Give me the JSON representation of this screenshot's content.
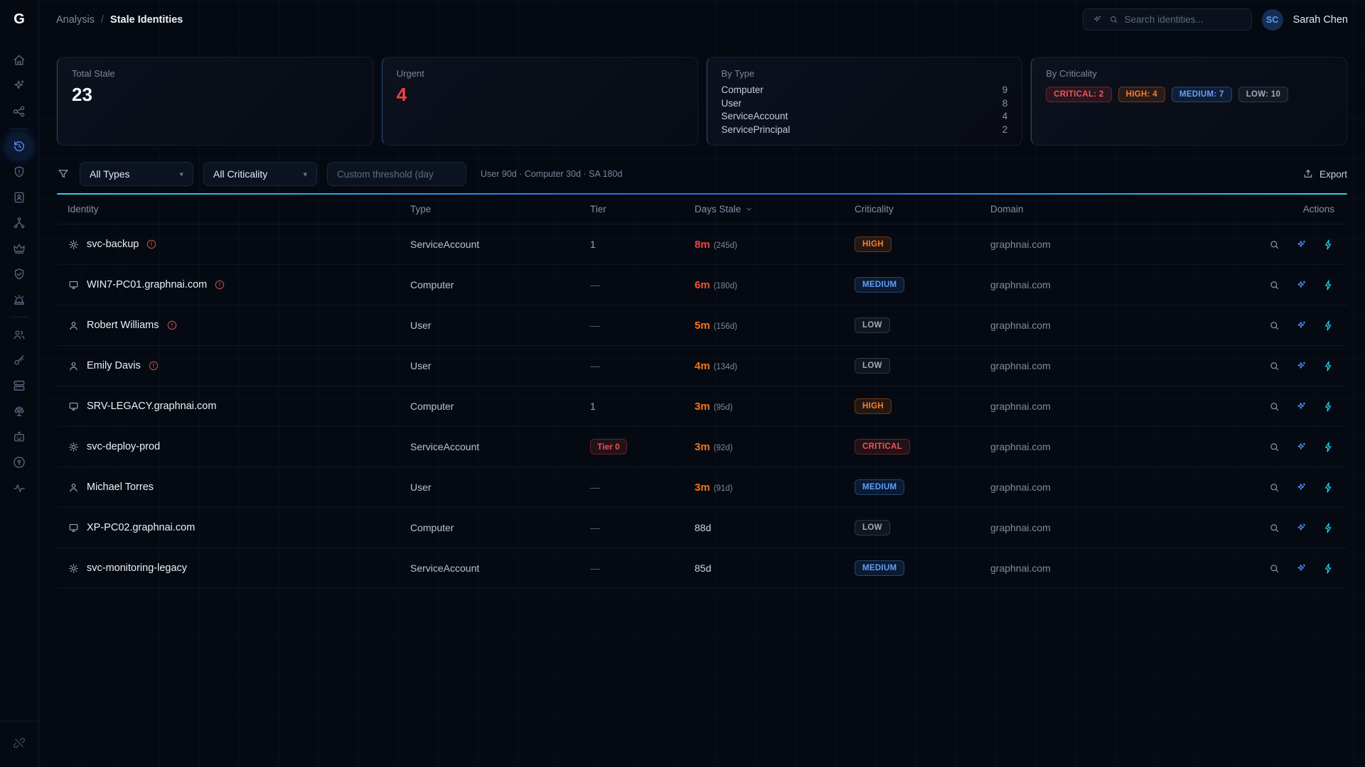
{
  "colors": {
    "accent_blue": "#3b82f6",
    "accent_cyan": "#22d3ee",
    "critical": "#ef4444",
    "high": "#f97316",
    "medium": "#60a5fa",
    "low": "#9ca3af"
  },
  "topbar": {
    "logo": "G",
    "breadcrumb": {
      "parent": "Analysis",
      "separator": "/",
      "current": "Stale Identities"
    },
    "search_placeholder": "Search identities...",
    "user": {
      "initials": "SC",
      "name": "Sarah Chen"
    }
  },
  "sidebar": {
    "items": [
      "home",
      "ai-sparkles",
      "graph-nodes",
      "stale-history",
      "shield-alert",
      "identity-card",
      "branch",
      "crown",
      "shield-check",
      "siren",
      "users",
      "key",
      "servers",
      "scales",
      "bot",
      "lock",
      "activity"
    ],
    "active_item": "stale-history",
    "footer_item": "unlink"
  },
  "cards": {
    "total_stale": {
      "label": "Total Stale",
      "value": "23"
    },
    "urgent": {
      "label": "Urgent",
      "value": "4"
    },
    "by_type": {
      "label": "By Type",
      "rows": [
        {
          "label": "Computer",
          "count": "9"
        },
        {
          "label": "User",
          "count": "8"
        },
        {
          "label": "ServiceAccount",
          "count": "4"
        },
        {
          "label": "ServicePrincipal",
          "count": "2"
        }
      ]
    },
    "by_criticality": {
      "label": "By Criticality",
      "badges": [
        {
          "label": "CRITICAL: 2",
          "level": "critical"
        },
        {
          "label": "HIGH: 4",
          "level": "high"
        },
        {
          "label": "MEDIUM: 7",
          "level": "medium"
        },
        {
          "label": "LOW: 10",
          "level": "low"
        }
      ]
    }
  },
  "filters": {
    "type_select": "All Types",
    "criticality_select": "All Criticality",
    "threshold_placeholder": "Custom threshold (day",
    "hint": "User 90d · Computer 30d · SA 180d",
    "export_label": "Export"
  },
  "table": {
    "columns": {
      "identity": "Identity",
      "type": "Type",
      "tier": "Tier",
      "days_stale": "Days Stale",
      "criticality": "Criticality",
      "domain": "Domain",
      "actions": "Actions"
    },
    "rows": [
      {
        "name": "svc-backup",
        "icon": "serviceaccount",
        "warning": true,
        "type": "ServiceAccount",
        "tier": "1",
        "tier_style": "plain",
        "stale": "8m",
        "stale_detail": "(245d)",
        "stale_color": "#ef4444",
        "stale_bold": true,
        "criticality": "HIGH",
        "crit_level": "high",
        "domain": "graphnai.com"
      },
      {
        "name": "WIN7-PC01.graphnai.com",
        "icon": "computer",
        "warning": true,
        "type": "Computer",
        "tier": "—",
        "tier_style": "plain",
        "stale": "6m",
        "stale_detail": "(180d)",
        "stale_color": "#f4512c",
        "stale_bold": true,
        "criticality": "MEDIUM",
        "crit_level": "medium",
        "domain": "graphnai.com"
      },
      {
        "name": "Robert Williams",
        "icon": "user",
        "warning": true,
        "type": "User",
        "tier": "—",
        "tier_style": "plain",
        "stale": "5m",
        "stale_detail": "(156d)",
        "stale_color": "#f97316",
        "stale_bold": true,
        "criticality": "LOW",
        "crit_level": "low",
        "domain": "graphnai.com"
      },
      {
        "name": "Emily Davis",
        "icon": "user",
        "warning": true,
        "type": "User",
        "tier": "—",
        "tier_style": "plain",
        "stale": "4m",
        "stale_detail": "(134d)",
        "stale_color": "#f97316",
        "stale_bold": true,
        "criticality": "LOW",
        "crit_level": "low",
        "domain": "graphnai.com"
      },
      {
        "name": "SRV-LEGACY.graphnai.com",
        "icon": "computer",
        "warning": false,
        "type": "Computer",
        "tier": "1",
        "tier_style": "plain",
        "stale": "3m",
        "stale_detail": "(95d)",
        "stale_color": "#f97316",
        "stale_bold": true,
        "criticality": "HIGH",
        "crit_level": "high",
        "domain": "graphnai.com"
      },
      {
        "name": "svc-deploy-prod",
        "icon": "serviceaccount",
        "warning": false,
        "type": "ServiceAccount",
        "tier": "Tier 0",
        "tier_style": "badge",
        "stale": "3m",
        "stale_detail": "(92d)",
        "stale_color": "#f97316",
        "stale_bold": true,
        "criticality": "CRITICAL",
        "crit_level": "critical",
        "domain": "graphnai.com"
      },
      {
        "name": "Michael Torres",
        "icon": "user",
        "warning": false,
        "type": "User",
        "tier": "—",
        "tier_style": "plain",
        "stale": "3m",
        "stale_detail": "(91d)",
        "stale_color": "#f97316",
        "stale_bold": true,
        "criticality": "MEDIUM",
        "crit_level": "medium",
        "domain": "graphnai.com"
      },
      {
        "name": "XP-PC02.graphnai.com",
        "icon": "computer",
        "warning": false,
        "type": "Computer",
        "tier": "—",
        "tier_style": "plain",
        "stale": "88d",
        "stale_detail": "",
        "stale_color": "#cfd7df",
        "stale_bold": false,
        "criticality": "LOW",
        "crit_level": "low",
        "domain": "graphnai.com"
      },
      {
        "name": "svc-monitoring-legacy",
        "icon": "serviceaccount",
        "warning": false,
        "type": "ServiceAccount",
        "tier": "—",
        "tier_style": "plain",
        "stale": "85d",
        "stale_detail": "",
        "stale_color": "#cfd7df",
        "stale_bold": false,
        "criticality": "MEDIUM",
        "crit_level": "medium",
        "domain": "graphnai.com"
      }
    ],
    "actions": [
      "inspect",
      "ai-analyze",
      "quick-action"
    ]
  }
}
